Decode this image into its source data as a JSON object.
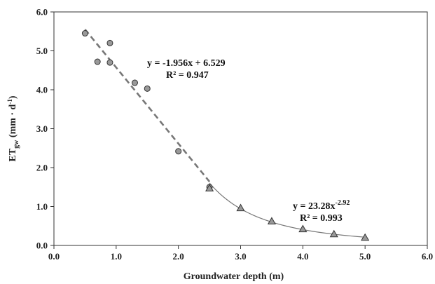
{
  "chart_data": {
    "type": "scatter",
    "xlabel": "Groundwater depth (m)",
    "ylabel": {
      "main": "ET",
      "sub": "gw",
      "unit": " (mm · d",
      "unit_sup": "-1",
      "close": ")"
    },
    "xlim": [
      0,
      6
    ],
    "ylim": [
      0,
      6
    ],
    "x_ticks": [
      "0.0",
      "1.0",
      "2.0",
      "3.0",
      "4.0",
      "5.0",
      "6.0"
    ],
    "y_ticks": [
      "0.0",
      "1.0",
      "2.0",
      "3.0",
      "4.0",
      "5.0",
      "6.0"
    ],
    "grid": false,
    "series": [
      {
        "marker": "circle",
        "color": "#999999",
        "points": [
          [
            0.5,
            5.45
          ],
          [
            0.7,
            4.72
          ],
          [
            0.9,
            5.2
          ],
          [
            0.9,
            4.7
          ],
          [
            1.3,
            4.18
          ],
          [
            1.5,
            4.03
          ],
          [
            2.0,
            2.42
          ],
          [
            2.5,
            1.5
          ]
        ],
        "fit": {
          "kind": "linear",
          "slope": -1.956,
          "intercept": 6.529,
          "range": [
            0.5,
            2.5
          ],
          "style": "dashed",
          "color": "#777777"
        },
        "equation": {
          "line1": "y = -1.956x + 6.529",
          "line2": "R² = 0.947"
        }
      },
      {
        "marker": "triangle",
        "color": "#999999",
        "points": [
          [
            2.5,
            1.47
          ],
          [
            3.0,
            0.96
          ],
          [
            3.5,
            0.62
          ],
          [
            4.0,
            0.42
          ],
          [
            4.5,
            0.29
          ],
          [
            5.0,
            0.2
          ]
        ],
        "fit": {
          "kind": "power",
          "a": 23.28,
          "b": -2.92,
          "range": [
            2.5,
            5.0
          ],
          "style": "solid",
          "color": "#777777"
        },
        "equation": {
          "line1_base": "y = 23.28x",
          "line1_sup": "-2.92",
          "line2": "R² = 0.993"
        }
      }
    ]
  }
}
